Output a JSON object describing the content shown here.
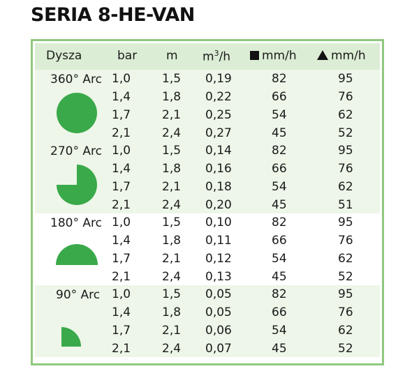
{
  "title": "SERIA 8-HE-VAN",
  "colors": {
    "frame_border": "#8fc97e",
    "header_band": "#dcedd5",
    "shaded_group": "#edf6e8",
    "icon_green": "#3aa94a"
  },
  "headers": {
    "nozzle": "Dysza",
    "bar": "bar",
    "m": "m",
    "flow_base": "m",
    "flow_sup": "3",
    "flow_tail": "/h",
    "square_mmh": "mm/h",
    "triangle_mmh": "mm/h"
  },
  "groups": [
    {
      "label": "360° Arc",
      "icon": "circle-360-icon",
      "rows": [
        {
          "bar": "1,0",
          "m": "1,5",
          "flow": "0,19",
          "sq": "82",
          "tri": "95"
        },
        {
          "bar": "1,4",
          "m": "1,8",
          "flow": "0,22",
          "sq": "66",
          "tri": "76"
        },
        {
          "bar": "1,7",
          "m": "2,1",
          "flow": "0,25",
          "sq": "54",
          "tri": "62"
        },
        {
          "bar": "2,1",
          "m": "2,4",
          "flow": "0,27",
          "sq": "45",
          "tri": "52"
        }
      ]
    },
    {
      "label": "270° Arc",
      "icon": "arc-270-icon",
      "rows": [
        {
          "bar": "1,0",
          "m": "1,5",
          "flow": "0,14",
          "sq": "82",
          "tri": "95"
        },
        {
          "bar": "1,4",
          "m": "1,8",
          "flow": "0,16",
          "sq": "66",
          "tri": "76"
        },
        {
          "bar": "1,7",
          "m": "2,1",
          "flow": "0,18",
          "sq": "54",
          "tri": "62"
        },
        {
          "bar": "2,1",
          "m": "2,4",
          "flow": "0,20",
          "sq": "45",
          "tri": "51"
        }
      ]
    },
    {
      "label": "180° Arc",
      "icon": "arc-180-icon",
      "rows": [
        {
          "bar": "1,0",
          "m": "1,5",
          "flow": "0,10",
          "sq": "82",
          "tri": "95"
        },
        {
          "bar": "1,4",
          "m": "1,8",
          "flow": "0,11",
          "sq": "66",
          "tri": "76"
        },
        {
          "bar": "1,7",
          "m": "2,1",
          "flow": "0,12",
          "sq": "54",
          "tri": "62"
        },
        {
          "bar": "2,1",
          "m": "2,4",
          "flow": "0,13",
          "sq": "45",
          "tri": "52"
        }
      ]
    },
    {
      "label": "90° Arc",
      "icon": "arc-90-icon",
      "rows": [
        {
          "bar": "1,0",
          "m": "1,5",
          "flow": "0,05",
          "sq": "82",
          "tri": "95"
        },
        {
          "bar": "1,4",
          "m": "1,8",
          "flow": "0,05",
          "sq": "66",
          "tri": "76"
        },
        {
          "bar": "1,7",
          "m": "2,1",
          "flow": "0,06",
          "sq": "54",
          "tri": "62"
        },
        {
          "bar": "2,1",
          "m": "2,4",
          "flow": "0,07",
          "sq": "45",
          "tri": "52"
        }
      ]
    }
  ]
}
